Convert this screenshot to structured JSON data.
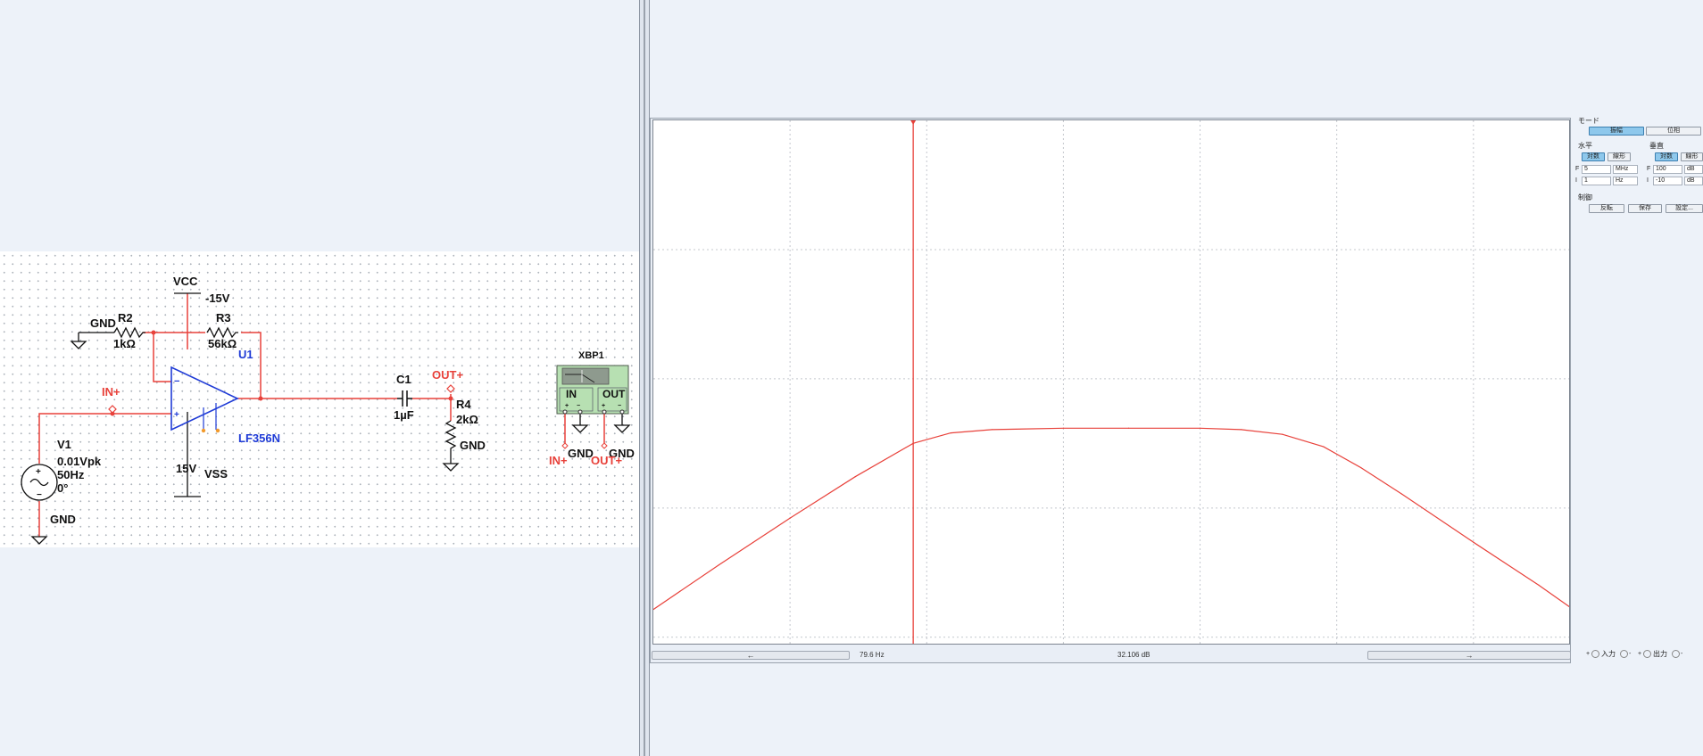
{
  "schematic": {
    "vcc": "VCC",
    "vcc_value": "-15V",
    "vss": "VSS",
    "vss_value": "15V",
    "r2_name": "R2",
    "r2_value": "1kΩ",
    "r3_name": "R3",
    "r3_value": "56kΩ",
    "opamp_ref": "U1",
    "opamp_part": "LF356N",
    "gnd": "GND",
    "in_probe": "IN+",
    "out_probe": "OUT+",
    "c1_name": "C1",
    "c1_value": "1µF",
    "r4_name": "R4",
    "r4_value": "2kΩ",
    "v1_name": "V1",
    "v1_amp": "0.01Vpk",
    "v1_freq": "50Hz",
    "v1_phase": "0°",
    "xbp_name": "XBP1",
    "xbp_in": "IN",
    "xbp_out": "OUT",
    "opamp_minus": "−",
    "opamp_plus": "+"
  },
  "bode": {
    "cursor_freq": "79.6 Hz",
    "cursor_gain": "32.106 dB",
    "left_arrow": "←",
    "right_arrow": "→"
  },
  "panel": {
    "mode_label": "モード",
    "mode_buttons": [
      "振幅",
      "位相"
    ],
    "horizontal_label": "水平",
    "vertical_label": "垂直",
    "scale_buttons_h": [
      "対数",
      "線形"
    ],
    "scale_buttons_v": [
      "対数",
      "線形"
    ],
    "h_final_prefix": "F",
    "h_final_value": "5",
    "h_final_unit": "MHz",
    "h_init_prefix": "I",
    "h_init_value": "1",
    "h_init_unit": "Hz",
    "v_final_prefix": "F",
    "v_final_value": "100",
    "v_final_unit": "dB",
    "v_init_prefix": "I",
    "v_init_value": "-10",
    "v_init_unit": "dB",
    "control_label": "制御",
    "control_buttons": [
      "反転",
      "保存",
      "設定..."
    ],
    "input_label": "入力",
    "output_label": "出力",
    "plus_sign": "+",
    "minus_sign": "-"
  },
  "chart_data": {
    "type": "line",
    "title": "",
    "xlabel": "",
    "ylabel": "",
    "x_scale": "log",
    "y_unit": "dB",
    "xlim": [
      1,
      5000000
    ],
    "ylim": [
      -10,
      100
    ],
    "grid": true,
    "cursor_x": 79.6,
    "series": [
      {
        "color": "#e8413a",
        "x": [
          1,
          3,
          10,
          30,
          79.6,
          150,
          300,
          1000,
          3000,
          10000,
          20000,
          40000,
          80000,
          150000,
          300000,
          1000000,
          3000000,
          5000000
        ],
        "y": [
          -2.8,
          6.5,
          16.4,
          25.1,
          32.1,
          34.3,
          35.0,
          35.3,
          35.3,
          35.3,
          35.0,
          34.0,
          31.4,
          27.0,
          21.4,
          11.3,
          2.3,
          -2.2
        ]
      }
    ]
  }
}
